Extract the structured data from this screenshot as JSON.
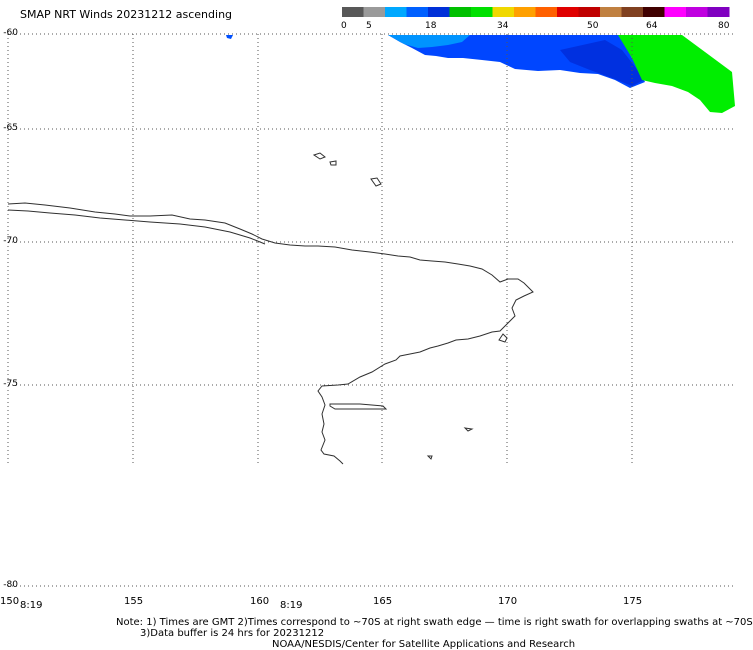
{
  "title": "SMAP NRT Winds 20231212 ascending",
  "colorbar": {
    "ticks": [
      "0",
      "5",
      "18",
      "34",
      "50",
      "64",
      "80"
    ],
    "segments": [
      "#585858",
      "#9a9a9a",
      "#00a8ff",
      "#0060ff",
      "#0030d8",
      "#00c000",
      "#00e000",
      "#f0d800",
      "#ffa000",
      "#ff6000",
      "#e00000",
      "#c00000",
      "#c08040",
      "#804020",
      "#400000",
      "#ff00ff",
      "#c000e0",
      "#8000c0"
    ]
  },
  "latitude_labels": [
    "-60",
    "-65",
    "-70",
    "-75",
    "-80"
  ],
  "longitude_labels": [
    "150",
    "155",
    "160",
    "165",
    "170",
    "175"
  ],
  "time_labels": [
    "8:19",
    "8:19"
  ],
  "notes": {
    "line1": "Note: 1) Times are GMT 2)Times correspond to ~70S at right swath edge — time is right swath for overlapping swaths at ~70S",
    "line2": "3)Data buffer is 24 hrs for 20231212",
    "line3": "NOAA/NESDIS/Center for Satellite Applications and Research"
  },
  "colors": {
    "blue_wind": "#0044ff",
    "light_blue_wind": "#0088ff",
    "green_wind": "#00ee00",
    "coast": "#303030"
  }
}
